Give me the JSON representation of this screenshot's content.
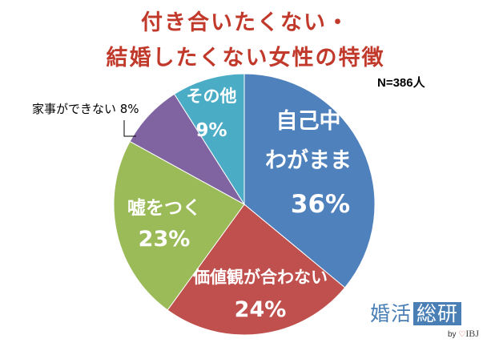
{
  "chart_data": {
    "type": "pie",
    "title_lines": [
      "付き合いたくない・",
      "結婚したくない女性の特徴"
    ],
    "sample_size_label": "N=386人",
    "start_angle_deg": 0,
    "direction": "clockwise",
    "slices": [
      {
        "label_lines": [
          "自己中",
          "わがまま"
        ],
        "value": 36,
        "value_label": "36%",
        "color": "#4f81bd"
      },
      {
        "label_lines": [
          "価値観が合わない"
        ],
        "value": 24,
        "value_label": "24%",
        "color": "#c0504d"
      },
      {
        "label_lines": [
          "嘘をつく"
        ],
        "value": 23,
        "value_label": "23%",
        "color": "#9bbb59"
      },
      {
        "label_lines": [
          "家事ができない 8%"
        ],
        "value": 8,
        "value_label": "",
        "color": "#8064a2",
        "external_label": true
      },
      {
        "label_lines": [
          "その他"
        ],
        "value": 9,
        "value_label": "9%",
        "color": "#4bacc6"
      }
    ]
  },
  "brand": {
    "name": "婚活",
    "name_boxed": "総研",
    "by": "by",
    "company": "IBJ"
  }
}
